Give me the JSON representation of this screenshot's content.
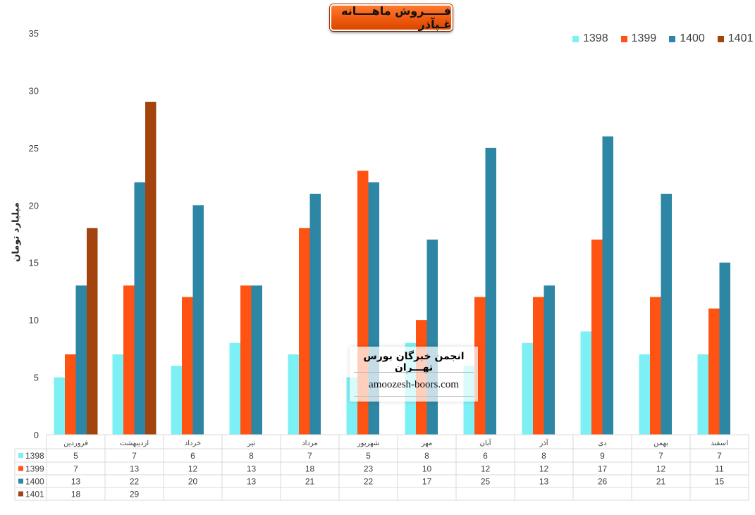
{
  "header": {
    "title": "فـــــروش ماهــــانه غـپآذر"
  },
  "watermark": {
    "org": "انجمن خبرگان بورس تهـــران",
    "url": "amoozesh-boors.com"
  },
  "colors": {
    "1398": "#7cf0f4",
    "1399": "#ff5314",
    "1400": "#2c86a4",
    "1401": "#a3440f"
  },
  "chart_data": {
    "type": "bar",
    "title": "فـــــروش ماهــــانه غـپآذر",
    "xlabel": "",
    "ylabel": "میلیارد تومان",
    "ylim": [
      0,
      35
    ],
    "yticks": [
      0,
      5,
      10,
      15,
      20,
      25,
      30,
      35
    ],
    "grid": false,
    "legend_position": "top-right",
    "categories": [
      "فروردین",
      "اردیبهشت",
      "خرداد",
      "تیر",
      "مرداد",
      "شهریور",
      "مهر",
      "آبان",
      "آذر",
      "دی",
      "بهمن",
      "اسفند"
    ],
    "series": [
      {
        "name": "1398",
        "values": [
          5,
          7,
          6,
          8,
          7,
          5,
          8,
          6,
          8,
          9,
          7,
          7
        ]
      },
      {
        "name": "1399",
        "values": [
          7,
          13,
          12,
          13,
          18,
          23,
          10,
          12,
          12,
          17,
          12,
          11
        ]
      },
      {
        "name": "1400",
        "values": [
          13,
          22,
          20,
          13,
          21,
          22,
          17,
          25,
          13,
          26,
          21,
          15
        ]
      },
      {
        "name": "1401",
        "values": [
          18,
          29,
          null,
          null,
          null,
          null,
          null,
          null,
          null,
          null,
          null,
          null
        ]
      }
    ]
  }
}
